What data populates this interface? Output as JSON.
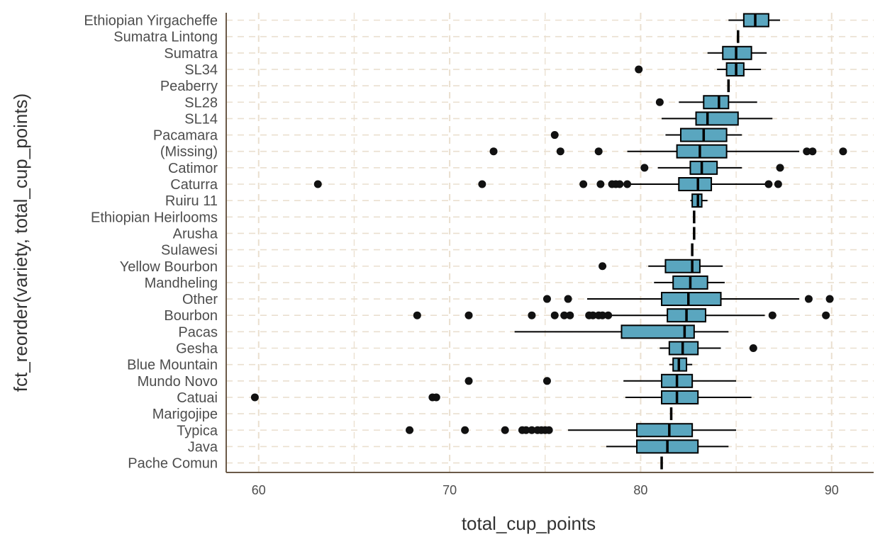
{
  "chart_data": {
    "type": "boxplot",
    "orientation": "horizontal",
    "title": "",
    "xlabel": "total_cup_points",
    "ylabel": "fct_reorder(variety, total_cup_points)",
    "xlim": [
      58.3,
      92.2
    ],
    "xticks": [
      60,
      70,
      80,
      90
    ],
    "grid": true,
    "legend": "none",
    "colors": {
      "box_fill": "#5aa6bf",
      "box_stroke": "#000000",
      "grid": "#eadfcf",
      "axis": "#6b5a48",
      "outlier": "#111111"
    },
    "categories": [
      {
        "name": "Ethiopian Yirgacheffe",
        "min": 84.6,
        "q1": 85.4,
        "median": 86.0,
        "q3": 86.7,
        "max": 87.3,
        "outliers": []
      },
      {
        "name": "Sumatra Lintong",
        "min": 85.1,
        "q1": 85.1,
        "median": 85.1,
        "q3": 85.1,
        "max": 85.1,
        "outliers": []
      },
      {
        "name": "Sumatra",
        "min": 83.5,
        "q1": 84.3,
        "median": 85.0,
        "q3": 85.8,
        "max": 86.6,
        "outliers": []
      },
      {
        "name": "SL34",
        "min": 84.0,
        "q1": 84.5,
        "median": 85.0,
        "q3": 85.4,
        "max": 86.3,
        "outliers": [
          79.9
        ]
      },
      {
        "name": "Peaberry",
        "min": 84.6,
        "q1": 84.6,
        "median": 84.6,
        "q3": 84.6,
        "max": 84.6,
        "outliers": []
      },
      {
        "name": "SL28",
        "min": 82.0,
        "q1": 83.3,
        "median": 84.1,
        "q3": 84.6,
        "max": 86.1,
        "outliers": [
          81.0
        ]
      },
      {
        "name": "SL14",
        "min": 81.1,
        "q1": 82.9,
        "median": 83.5,
        "q3": 85.1,
        "max": 86.9,
        "outliers": []
      },
      {
        "name": "Pacamara",
        "min": 81.3,
        "q1": 82.1,
        "median": 83.3,
        "q3": 84.5,
        "max": 85.3,
        "outliers": [
          75.5
        ]
      },
      {
        "name": "(Missing)",
        "min": 79.3,
        "q1": 81.9,
        "median": 83.1,
        "q3": 84.5,
        "max": 88.3,
        "outliers": [
          72.3,
          75.8,
          77.8,
          88.7,
          89.0,
          90.6
        ]
      },
      {
        "name": "Catimor",
        "min": 80.9,
        "q1": 82.6,
        "median": 83.2,
        "q3": 84.0,
        "max": 85.3,
        "outliers": [
          80.2,
          87.3
        ]
      },
      {
        "name": "Caturra",
        "min": 79.3,
        "q1": 82.0,
        "median": 83.0,
        "q3": 83.7,
        "max": 86.6,
        "outliers": [
          63.1,
          71.7,
          77.0,
          77.9,
          78.5,
          78.7,
          78.9,
          79.3,
          86.7,
          87.2
        ]
      },
      {
        "name": "Ruiru 11",
        "min": 82.6,
        "q1": 82.7,
        "median": 83.0,
        "q3": 83.2,
        "max": 83.5,
        "outliers": []
      },
      {
        "name": "Ethiopian Heirlooms",
        "min": 82.8,
        "q1": 82.8,
        "median": 82.8,
        "q3": 82.8,
        "max": 82.8,
        "outliers": []
      },
      {
        "name": "Arusha",
        "min": 82.8,
        "q1": 82.8,
        "median": 82.8,
        "q3": 82.8,
        "max": 82.8,
        "outliers": []
      },
      {
        "name": "Sulawesi",
        "min": 82.7,
        "q1": 82.7,
        "median": 82.7,
        "q3": 82.7,
        "max": 82.7,
        "outliers": []
      },
      {
        "name": "Yellow Bourbon",
        "min": 80.4,
        "q1": 81.3,
        "median": 82.7,
        "q3": 83.1,
        "max": 84.3,
        "outliers": [
          78.0
        ]
      },
      {
        "name": "Mandheling",
        "min": 80.7,
        "q1": 81.7,
        "median": 82.6,
        "q3": 83.5,
        "max": 84.4,
        "outliers": []
      },
      {
        "name": "Other",
        "min": 77.2,
        "q1": 81.1,
        "median": 82.5,
        "q3": 84.2,
        "max": 88.3,
        "outliers": [
          75.1,
          76.2,
          88.8,
          89.9
        ]
      },
      {
        "name": "Bourbon",
        "min": 78.4,
        "q1": 81.4,
        "median": 82.4,
        "q3": 83.4,
        "max": 86.5,
        "outliers": [
          68.3,
          71.0,
          74.3,
          75.5,
          76.0,
          76.3,
          77.3,
          77.5,
          77.8,
          78.0,
          78.3,
          86.9,
          89.7
        ]
      },
      {
        "name": "Pacas",
        "min": 73.4,
        "q1": 79.0,
        "median": 82.3,
        "q3": 82.8,
        "max": 84.6,
        "outliers": []
      },
      {
        "name": "Gesha",
        "min": 81.0,
        "q1": 81.5,
        "median": 82.2,
        "q3": 83.0,
        "max": 84.2,
        "outliers": [
          85.9
        ]
      },
      {
        "name": "Blue Mountain",
        "min": 81.5,
        "q1": 81.7,
        "median": 82.0,
        "q3": 82.4,
        "max": 82.7,
        "outliers": []
      },
      {
        "name": "Mundo Novo",
        "min": 79.1,
        "q1": 81.1,
        "median": 81.9,
        "q3": 82.7,
        "max": 85.0,
        "outliers": [
          71.0,
          75.1
        ]
      },
      {
        "name": "Catuai",
        "min": 79.2,
        "q1": 81.1,
        "median": 81.9,
        "q3": 83.0,
        "max": 85.8,
        "outliers": [
          59.8,
          69.1,
          69.3
        ]
      },
      {
        "name": "Marigojipe",
        "min": 81.6,
        "q1": 81.6,
        "median": 81.6,
        "q3": 81.6,
        "max": 81.6,
        "outliers": []
      },
      {
        "name": "Typica",
        "min": 76.2,
        "q1": 79.8,
        "median": 81.5,
        "q3": 82.7,
        "max": 85.0,
        "outliers": [
          67.9,
          70.8,
          72.9,
          73.8,
          74.0,
          74.3,
          74.6,
          74.8,
          75.0,
          75.2
        ]
      },
      {
        "name": "Java",
        "min": 78.2,
        "q1": 79.8,
        "median": 81.4,
        "q3": 83.0,
        "max": 84.6,
        "outliers": []
      },
      {
        "name": "Pache Comun",
        "min": 81.1,
        "q1": 81.1,
        "median": 81.1,
        "q3": 81.1,
        "max": 81.1,
        "outliers": []
      }
    ]
  }
}
